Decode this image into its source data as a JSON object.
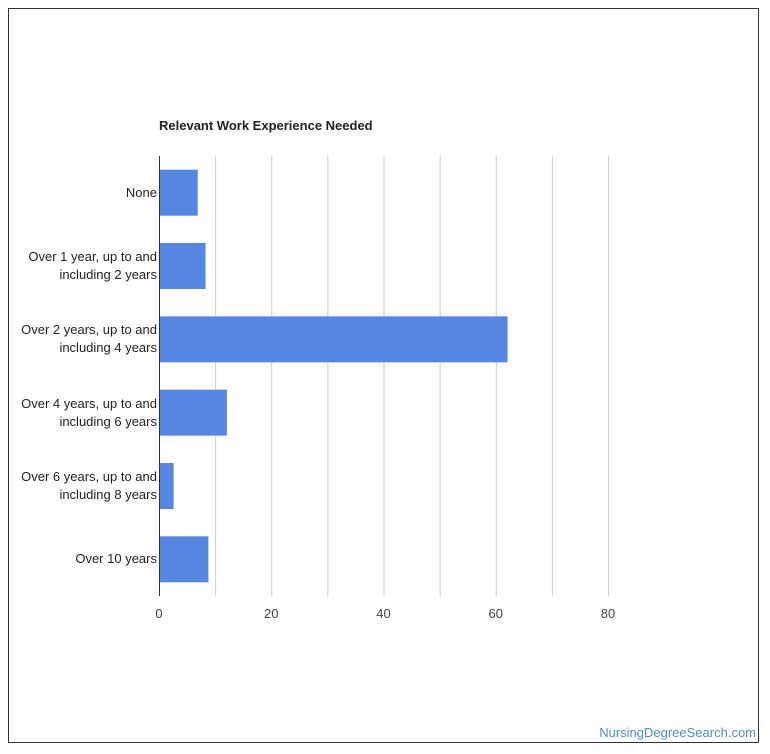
{
  "chart_data": {
    "type": "bar",
    "orientation": "horizontal",
    "title": "Relevant Work Experience Needed",
    "categories": [
      "None",
      "Over 1 year, up to and including 2 years",
      "Over 2 years, up to and including 4 years",
      "Over 4 years, up to and including 6 years",
      "Over 6 years, up to and including 8 years",
      "Over 10 years"
    ],
    "category_lines": [
      [
        "None"
      ],
      [
        "Over 1 year, up to and",
        "including 2 years"
      ],
      [
        "Over 2 years, up to and",
        "including 4 years"
      ],
      [
        "Over 4 years, up to and",
        "including 6 years"
      ],
      [
        "Over 6 years, up to and",
        "including 8 years"
      ],
      [
        "Over 10 years"
      ]
    ],
    "values": [
      6.9,
      8.3,
      62.1,
      12.1,
      2.6,
      8.8
    ],
    "xlim": [
      0,
      80
    ],
    "xticks": [
      "0",
      "20",
      "40",
      "60",
      "80"
    ],
    "grid": true,
    "bar_color": "#5587e3",
    "grid_color": "#cccccc",
    "xlabel": "",
    "ylabel": ""
  },
  "watermark": "NursingDegreeSearch.com"
}
